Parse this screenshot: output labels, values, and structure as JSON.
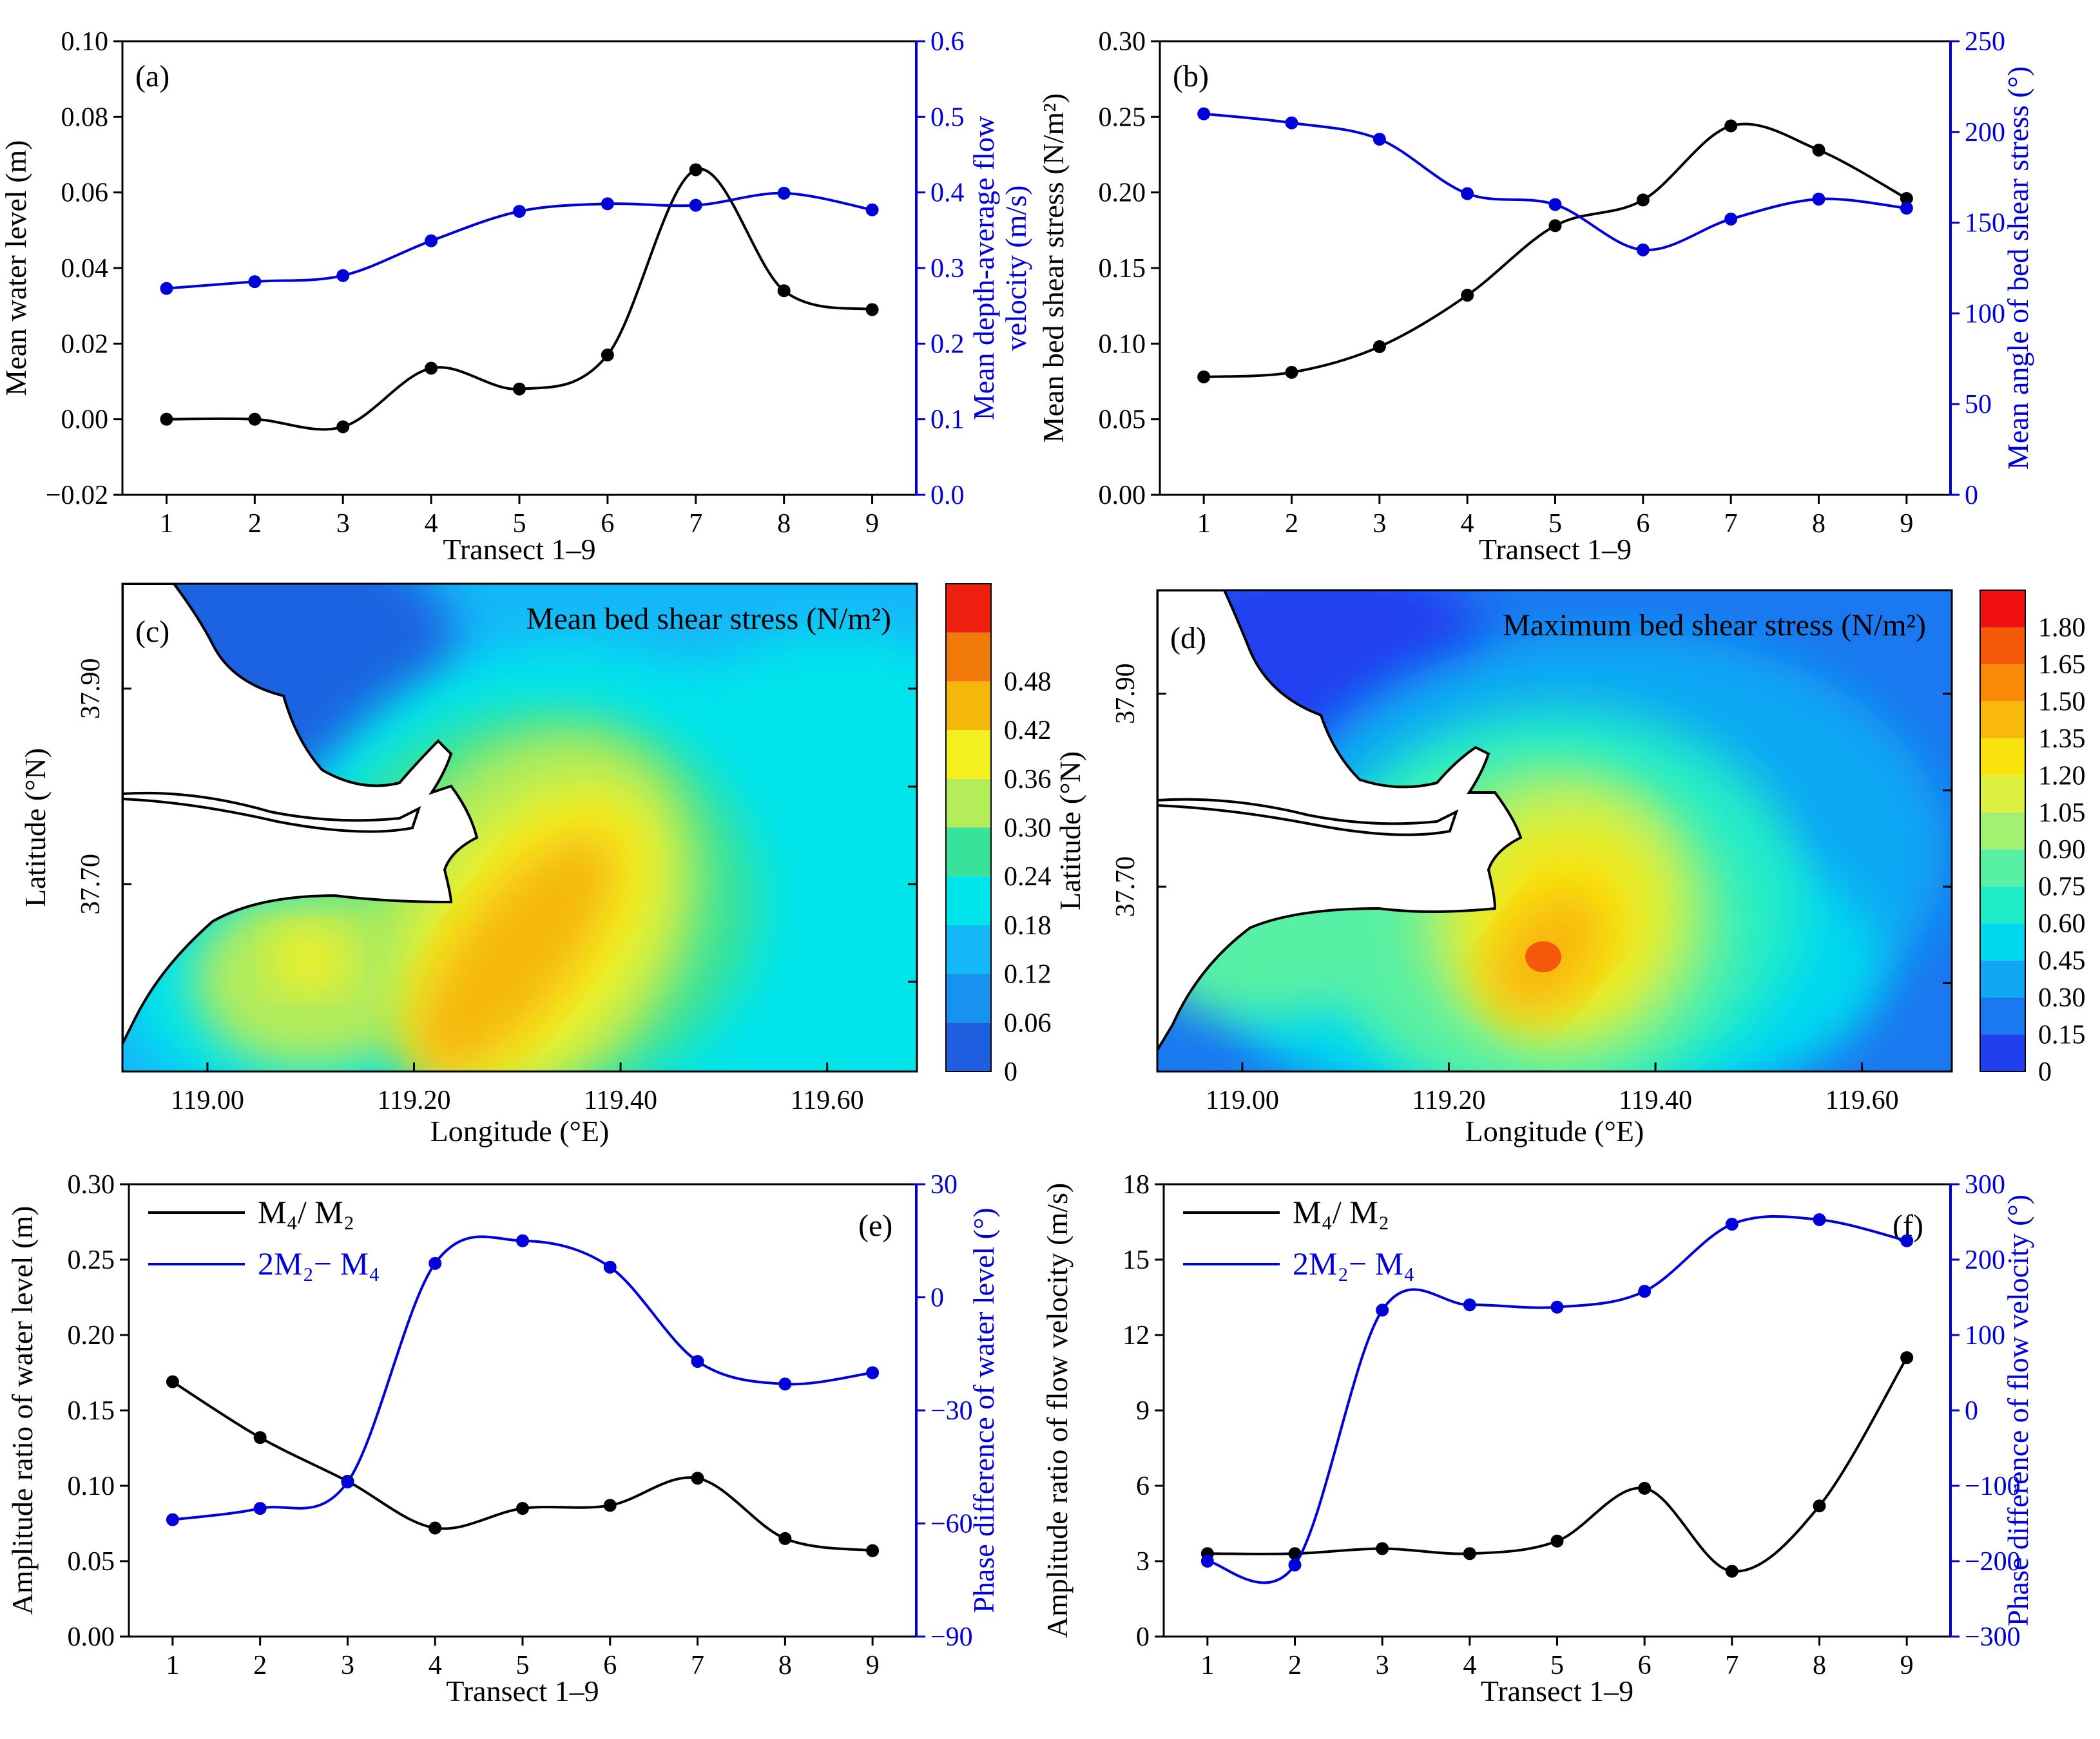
{
  "chart_data": [
    {
      "panel": "(a)",
      "type": "line",
      "xlabel": "Transect 1–9",
      "ylabel": "Mean water level (m)",
      "y2label_lines": [
        "Mean depth-average flow",
        "velocity (m/s)"
      ],
      "x": [
        1,
        2,
        3,
        4,
        5,
        6,
        7,
        8,
        9
      ],
      "xticks": [
        1,
        2,
        3,
        4,
        5,
        6,
        7,
        8,
        9
      ],
      "ylim": [
        -0.02,
        0.1
      ],
      "yticks": [
        -0.02,
        0.0,
        0.02,
        0.04,
        0.06,
        0.08,
        0.1
      ],
      "ytick_labels": [
        "−0.02",
        "0.00",
        "0.02",
        "0.04",
        "0.06",
        "0.08",
        "0.10"
      ],
      "y2lim": [
        0.0,
        0.6
      ],
      "y2ticks": [
        0.0,
        0.1,
        0.2,
        0.3,
        0.4,
        0.5,
        0.6
      ],
      "y2tick_labels": [
        "0.0",
        "0.1",
        "0.2",
        "0.3",
        "0.4",
        "0.5",
        "0.6"
      ],
      "series": [
        {
          "axis": "left",
          "color": "#000000",
          "values": [
            0.0,
            0.0,
            -0.002,
            0.0135,
            0.008,
            0.017,
            0.066,
            0.034,
            0.029
          ]
        },
        {
          "axis": "right",
          "color": "#0000d8",
          "values": [
            0.273,
            0.282,
            0.29,
            0.336,
            0.375,
            0.385,
            0.383,
            0.399,
            0.377
          ]
        }
      ]
    },
    {
      "panel": "(b)",
      "type": "line",
      "xlabel": "Transect 1–9",
      "ylabel": "Mean bed shear stress (N/m²)",
      "y2label_lines": [
        "Mean angle of bed shear stress (°)"
      ],
      "x": [
        1,
        2,
        3,
        4,
        5,
        6,
        7,
        8,
        9
      ],
      "xticks": [
        1,
        2,
        3,
        4,
        5,
        6,
        7,
        8,
        9
      ],
      "ylim": [
        0.0,
        0.3
      ],
      "yticks": [
        0.0,
        0.05,
        0.1,
        0.15,
        0.2,
        0.25,
        0.3
      ],
      "ytick_labels": [
        "0.00",
        "0.05",
        "0.10",
        "0.15",
        "0.20",
        "0.25",
        "0.30"
      ],
      "y2lim": [
        0,
        250
      ],
      "y2ticks": [
        0,
        50,
        100,
        150,
        200,
        250
      ],
      "y2tick_labels": [
        "0",
        "50",
        "100",
        "150",
        "200",
        "250"
      ],
      "series": [
        {
          "axis": "left",
          "color": "#000000",
          "values": [
            0.078,
            0.081,
            0.098,
            0.132,
            0.178,
            0.195,
            0.244,
            0.228,
            0.196
          ]
        },
        {
          "axis": "right",
          "color": "#0000d8",
          "values": [
            210,
            205,
            196,
            166,
            160,
            135,
            152,
            163,
            158
          ]
        }
      ]
    },
    {
      "panel": "(c)",
      "type": "heatmap",
      "title": "Mean bed shear stress (N/m²)",
      "xlabel": "Longitude (°E)",
      "ylabel_lines": [
        "Latitude (°N)"
      ],
      "xticks": [
        "119.00",
        "119.20",
        "119.40",
        "119.60"
      ],
      "yticks": [
        "37.90",
        "37.70"
      ],
      "colorbar_labels": [
        "0",
        "0.06",
        "0.12",
        "0.18",
        "0.24",
        "0.30",
        "0.36",
        "0.42",
        "0.48"
      ],
      "colorbar_colors": [
        "#1e5fe0",
        "#1892f0",
        "#14b8f8",
        "#00e4ec",
        "#38e29a",
        "#b4ec5a",
        "#f4f020",
        "#f5b80a",
        "#f27a0a",
        "#f02010"
      ]
    },
    {
      "panel": "(d)",
      "type": "heatmap",
      "title": "Maximum bed shear stress (N/m²)",
      "xlabel": "Longitude (°E)",
      "ylabel_lines": [
        "Latitude (°N)"
      ],
      "xticks": [
        "119.00",
        "119.20",
        "119.40",
        "119.60"
      ],
      "yticks": [
        "37.90",
        "37.70"
      ],
      "colorbar_labels": [
        "0",
        "0.15",
        "0.30",
        "0.45",
        "0.60",
        "0.75",
        "0.90",
        "1.05",
        "1.20",
        "1.35",
        "1.50",
        "1.65",
        "1.80"
      ],
      "colorbar_colors": [
        "#2040f0",
        "#1a78f0",
        "#10a8f4",
        "#00d8f0",
        "#20ecc8",
        "#58f0a4",
        "#a4f070",
        "#dcf040",
        "#f8e40c",
        "#f8b80c",
        "#f88a08",
        "#f45808",
        "#f01010"
      ]
    },
    {
      "panel": "(e)",
      "type": "line",
      "xlabel": "Transect 1–9",
      "ylabel": "Amplitude ratio of water level (m)",
      "y2label_lines": [
        "Phase difference of water level (°)"
      ],
      "x": [
        1,
        2,
        3,
        4,
        5,
        6,
        7,
        8,
        9
      ],
      "xticks": [
        1,
        2,
        3,
        4,
        5,
        6,
        7,
        8,
        9
      ],
      "ylim": [
        0.0,
        0.3
      ],
      "yticks": [
        0.0,
        0.05,
        0.1,
        0.15,
        0.2,
        0.25,
        0.3
      ],
      "ytick_labels": [
        "0.00",
        "0.05",
        "0.10",
        "0.15",
        "0.20",
        "0.25",
        "0.30"
      ],
      "y2lim": [
        -90,
        30
      ],
      "y2ticks": [
        -90,
        -60,
        -30,
        0,
        30
      ],
      "y2tick_labels": [
        "−90",
        "−60",
        "−30",
        "0",
        "30"
      ],
      "legend": [
        "M₄/ M₂",
        "2M₂− M₄"
      ],
      "series": [
        {
          "name": "M₄/ M₂",
          "axis": "left",
          "color": "#000000",
          "values": [
            0.169,
            0.132,
            0.103,
            0.072,
            0.085,
            0.087,
            0.105,
            0.065,
            0.057
          ]
        },
        {
          "name": "2M₂− M₄",
          "axis": "right",
          "color": "#0000d8",
          "values": [
            -59,
            -56,
            -49,
            9,
            15,
            8,
            -17,
            -23,
            -20
          ]
        }
      ]
    },
    {
      "panel": "(f)",
      "type": "line",
      "xlabel": "Transect 1–9",
      "ylabel": "Amplitude ratio of flow velocity (m/s)",
      "y2label_lines": [
        "Phase difference of flow velocity (°)"
      ],
      "x": [
        1,
        2,
        3,
        4,
        5,
        6,
        7,
        8,
        9
      ],
      "xticks": [
        1,
        2,
        3,
        4,
        5,
        6,
        7,
        8,
        9
      ],
      "ylim": [
        0,
        18
      ],
      "yticks": [
        0,
        3,
        6,
        9,
        12,
        15,
        18
      ],
      "ytick_labels": [
        "0",
        "3",
        "6",
        "9",
        "12",
        "15",
        "18"
      ],
      "y2lim": [
        -300,
        300
      ],
      "y2ticks": [
        -300,
        -200,
        -100,
        0,
        100,
        200,
        300
      ],
      "y2tick_labels": [
        "−300",
        "−200",
        "−100",
        "0",
        "100",
        "200",
        "300"
      ],
      "legend": [
        "M₄/ M₂",
        "2M₂− M₄"
      ],
      "series": [
        {
          "name": "M₄/ M₂",
          "axis": "left",
          "color": "#000000",
          "values": [
            3.3,
            3.3,
            3.5,
            3.3,
            3.8,
            5.9,
            2.6,
            5.2,
            11.1
          ]
        },
        {
          "name": "2M₂− M₄",
          "axis": "right",
          "color": "#0000d8",
          "values": [
            -200,
            -205,
            133,
            140,
            137,
            158,
            247,
            253,
            225
          ]
        }
      ]
    }
  ]
}
